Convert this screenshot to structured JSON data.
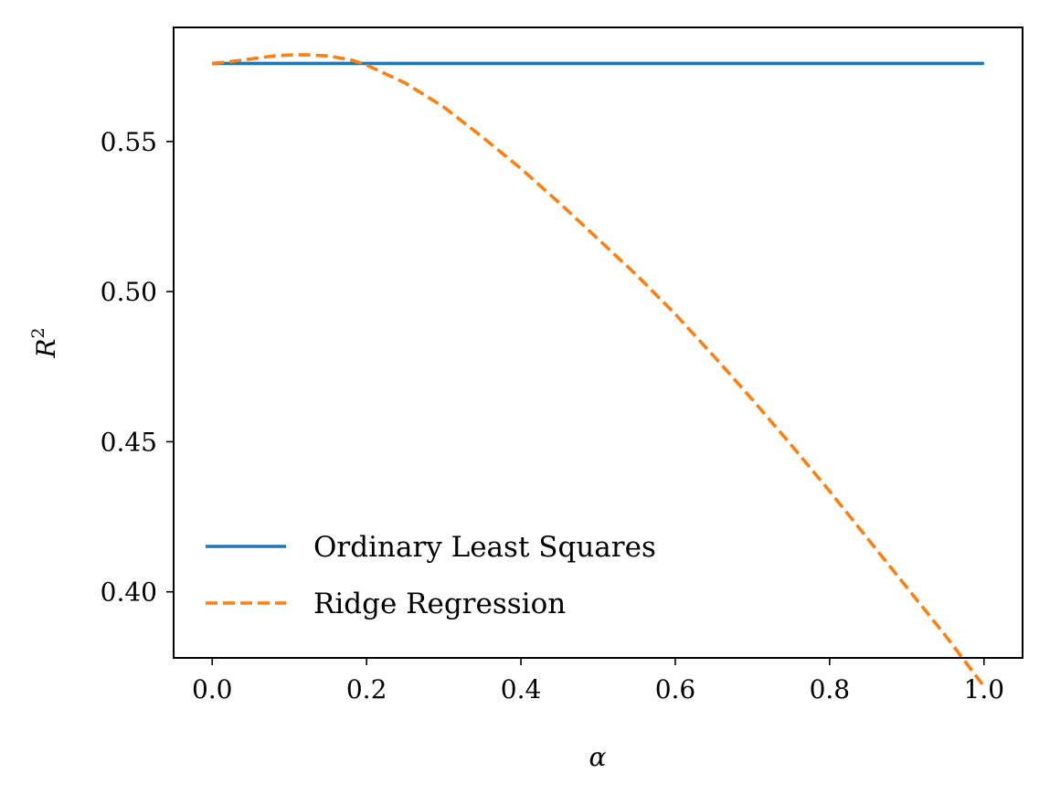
{
  "chart_data": {
    "type": "line",
    "title": "",
    "xlabel": "α",
    "ylabel_base": "R",
    "ylabel_sup": "2",
    "xlim": [
      -0.05,
      1.05
    ],
    "ylim": [
      0.378,
      0.588
    ],
    "xticks": [
      0.0,
      0.2,
      0.4,
      0.6,
      0.8,
      1.0
    ],
    "xtick_labels": [
      "0.0",
      "0.2",
      "0.4",
      "0.6",
      "0.8",
      "1.0"
    ],
    "yticks": [
      0.4,
      0.45,
      0.5,
      0.55
    ],
    "ytick_labels": [
      "0.40",
      "0.45",
      "0.50",
      "0.55"
    ],
    "grid": false,
    "legend_position": "lower-left",
    "series": [
      {
        "name": "Ordinary Least Squares",
        "color": "#1f77b4",
        "style": "solid",
        "x": [
          0.0,
          1.0
        ],
        "y": [
          0.576,
          0.576
        ]
      },
      {
        "name": "Ridge Regression",
        "color": "#ff7f0e",
        "style": "dashed",
        "x": [
          0.0,
          0.02,
          0.05,
          0.08,
          0.1,
          0.12,
          0.15,
          0.18,
          0.2,
          0.25,
          0.3,
          0.35,
          0.4,
          0.45,
          0.5,
          0.55,
          0.6,
          0.65,
          0.7,
          0.75,
          0.8,
          0.85,
          0.9,
          0.95,
          1.0
        ],
        "y": [
          0.576,
          0.5765,
          0.5775,
          0.5785,
          0.5788,
          0.5789,
          0.5785,
          0.5772,
          0.5755,
          0.5695,
          0.5615,
          0.5515,
          0.541,
          0.5295,
          0.5175,
          0.5055,
          0.4925,
          0.4785,
          0.464,
          0.449,
          0.4335,
          0.4175,
          0.4015,
          0.3855,
          0.3685
        ]
      }
    ]
  }
}
